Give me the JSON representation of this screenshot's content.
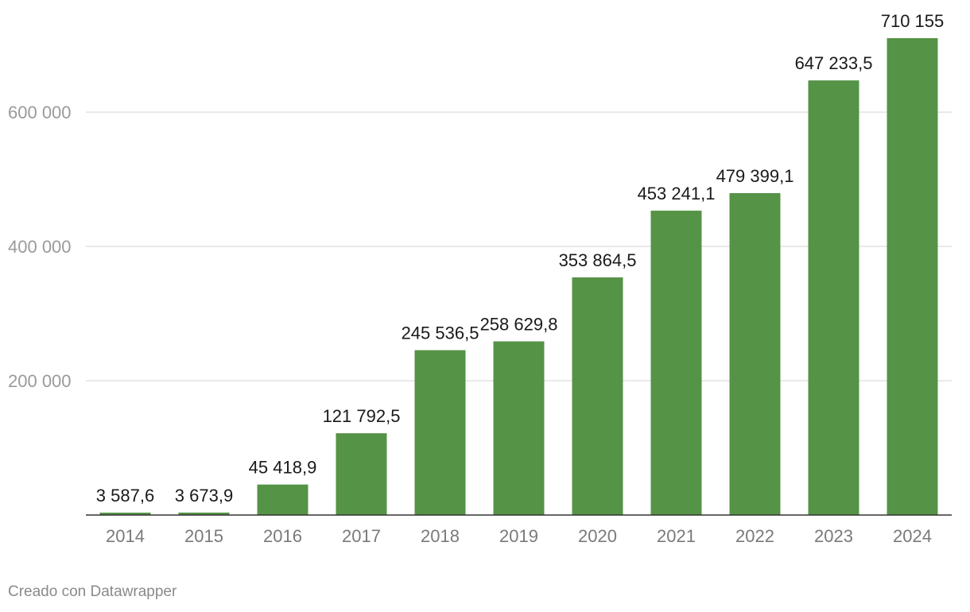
{
  "chart_data": {
    "type": "bar",
    "title": "",
    "xlabel": "",
    "ylabel": "",
    "categories": [
      "2014",
      "2015",
      "2016",
      "2017",
      "2018",
      "2019",
      "2020",
      "2021",
      "2022",
      "2023",
      "2024"
    ],
    "values": [
      3587.6,
      3673.9,
      45418.9,
      121792.5,
      245536.5,
      258629.8,
      353864.5,
      453241.1,
      479399.1,
      647233.5,
      710155
    ],
    "value_labels": [
      "3 587,6",
      "3 673,9",
      "45 418,9",
      "121 792,5",
      "245 536,5",
      "258 629,8",
      "353 864,5",
      "453 241,1",
      "479 399,1",
      "647 233,5",
      "710 155"
    ],
    "yticks": [
      200000,
      400000,
      600000
    ],
    "ytick_labels": [
      "200 000",
      "400 000",
      "600 000"
    ],
    "ylim": [
      0,
      710155
    ],
    "grid": true,
    "bar_color": "#559346"
  },
  "footer": {
    "credit": "Creado con Datawrapper"
  }
}
